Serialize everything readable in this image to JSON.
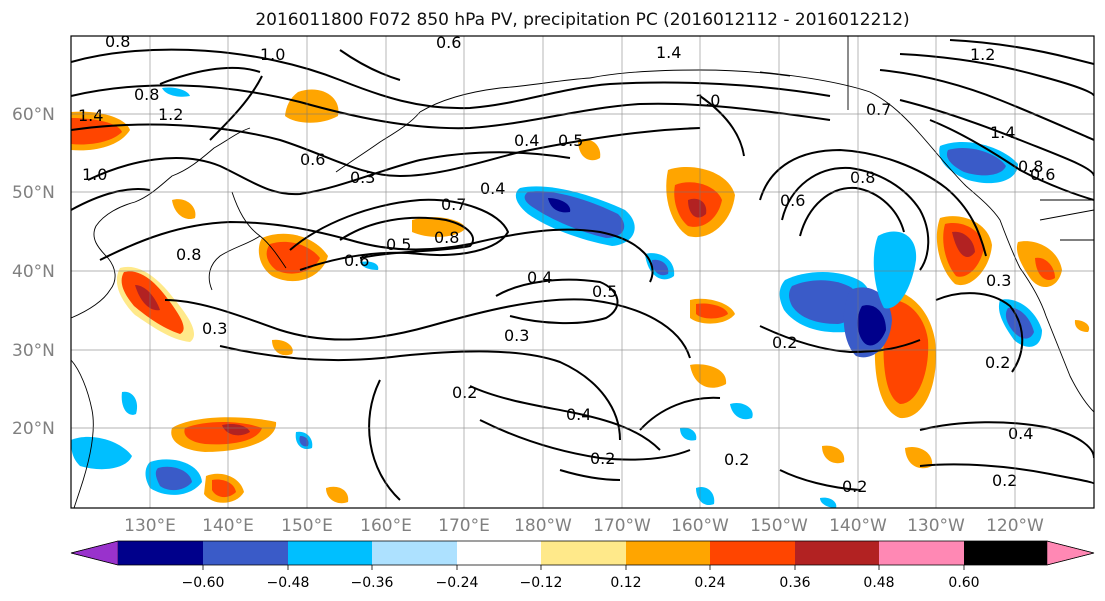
{
  "title": "2016011800 F072 850 hPa PV, precipitation PC (2016012112 - 2016012212)",
  "map": {
    "lat_labels": [
      "60°N",
      "50°N",
      "40°N",
      "30°N",
      "20°N"
    ],
    "lon_labels": [
      "130°E",
      "140°E",
      "150°E",
      "160°E",
      "170°E",
      "180°W",
      "170°W",
      "160°W",
      "150°W",
      "140°W",
      "130°W",
      "120°W"
    ],
    "contour_labels": [
      {
        "text": "0.8"
      },
      {
        "text": "1.4"
      },
      {
        "text": "1.2"
      },
      {
        "text": "1.0"
      },
      {
        "text": "0.6"
      },
      {
        "text": "0.8"
      },
      {
        "text": "0.6"
      },
      {
        "text": "0.3"
      },
      {
        "text": "0.4"
      },
      {
        "text": "0.5"
      },
      {
        "text": "0.7"
      },
      {
        "text": "0.8"
      },
      {
        "text": "0.6"
      },
      {
        "text": "0.5"
      },
      {
        "text": "0.4"
      },
      {
        "text": "0.5"
      },
      {
        "text": "0.3"
      },
      {
        "text": "0.2"
      },
      {
        "text": "0.4"
      },
      {
        "text": "0.2"
      },
      {
        "text": "0.2"
      },
      {
        "text": "0.2"
      },
      {
        "text": "0.8"
      },
      {
        "text": "0.3"
      },
      {
        "text": "1.4"
      },
      {
        "text": "0.6"
      },
      {
        "text": "0.4"
      },
      {
        "text": "0.2"
      },
      {
        "text": "0.4"
      },
      {
        "text": "0.2"
      },
      {
        "text": "0.2"
      },
      {
        "text": "1.0"
      },
      {
        "text": "0.7"
      },
      {
        "text": "0.8"
      },
      {
        "text": "0.3"
      },
      {
        "text": "1.4"
      },
      {
        "text": "0.8"
      },
      {
        "text": "1.2"
      },
      {
        "text": "0.6"
      },
      {
        "text": "1.0"
      }
    ]
  },
  "colorbar": {
    "colors": [
      "#9932CC",
      "#00008B",
      "#3A5BC8",
      "#00BFFF",
      "#ADE1FF",
      "#FFFFFF",
      "#FFE98A",
      "#FFA500",
      "#FF4500",
      "#B22222",
      "#FF88B4"
    ],
    "ticks": [
      "−0.60",
      "−0.48",
      "−0.36",
      "−0.24",
      "−0.12",
      "0.12",
      "0.24",
      "0.36",
      "0.48",
      "0.60"
    ]
  }
}
